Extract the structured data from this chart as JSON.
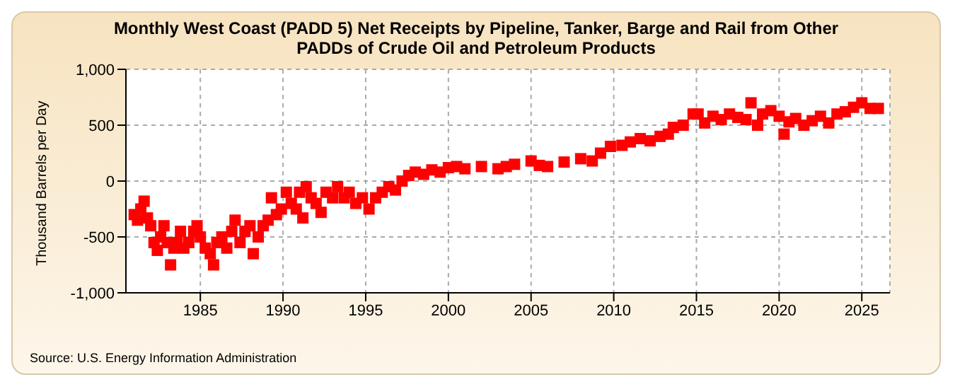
{
  "chart_data": {
    "type": "scatter",
    "title": "Monthly West Coast (PADD 5) Net Receipts by Pipeline, Tanker, Barge and Rail from Other PADDs of Crude Oil and Petroleum Products",
    "ylabel": "Thousand Barrels per Day",
    "annotations": [
      "Source: U.S. Energy Information Administration"
    ],
    "x": [
      1981.0,
      1981.2,
      1981.4,
      1981.6,
      1981.8,
      1982.0,
      1982.2,
      1982.4,
      1982.6,
      1982.8,
      1983.0,
      1983.2,
      1983.4,
      1983.6,
      1983.8,
      1984.0,
      1984.3,
      1984.6,
      1984.8,
      1985.0,
      1985.3,
      1985.6,
      1985.8,
      1986.0,
      1986.3,
      1986.6,
      1986.9,
      1987.1,
      1987.4,
      1987.7,
      1988.0,
      1988.2,
      1988.5,
      1988.8,
      1989.1,
      1989.3,
      1989.6,
      1989.9,
      1990.2,
      1990.5,
      1990.8,
      1991.0,
      1991.2,
      1991.4,
      1991.7,
      1992.0,
      1992.3,
      1992.6,
      1993.0,
      1993.3,
      1993.7,
      1994.0,
      1994.4,
      1994.8,
      1995.2,
      1995.6,
      1996.0,
      1996.4,
      1996.8,
      1997.2,
      1997.6,
      1998.0,
      1998.5,
      1999.0,
      1999.5,
      2000.0,
      2000.5,
      2001.0,
      2002.0,
      2003.0,
      2003.5,
      2004.0,
      2005.0,
      2005.5,
      2006.0,
      2007.0,
      2008.0,
      2008.7,
      2009.2,
      2009.8,
      2010.5,
      2011.0,
      2011.6,
      2012.2,
      2012.8,
      2013.3,
      2013.6,
      2014.2,
      2014.8,
      2015.1,
      2015.5,
      2016.0,
      2016.5,
      2017.0,
      2017.5,
      2018.0,
      2018.3,
      2018.7,
      2019.0,
      2019.5,
      2020.0,
      2020.3,
      2020.6,
      2021.0,
      2021.5,
      2022.0,
      2022.5,
      2023.0,
      2023.5,
      2024.0,
      2024.5,
      2025.0,
      2025.5,
      2026.0
    ],
    "series": [
      {
        "color": "#ff0000",
        "values": [
          -300,
          -350,
          -250,
          -180,
          -330,
          -400,
          -550,
          -620,
          -500,
          -400,
          -550,
          -750,
          -600,
          -550,
          -450,
          -600,
          -550,
          -450,
          -400,
          -500,
          -600,
          -650,
          -750,
          -550,
          -500,
          -600,
          -450,
          -350,
          -550,
          -450,
          -400,
          -650,
          -500,
          -400,
          -350,
          -150,
          -300,
          -250,
          -100,
          -200,
          -250,
          -100,
          -330,
          -50,
          -150,
          -200,
          -280,
          -100,
          -150,
          -50,
          -150,
          -100,
          -200,
          -150,
          -250,
          -150,
          -100,
          -50,
          -80,
          0,
          50,
          80,
          60,
          100,
          80,
          120,
          130,
          110,
          130,
          110,
          130,
          150,
          180,
          140,
          130,
          170,
          200,
          180,
          250,
          310,
          320,
          350,
          380,
          360,
          400,
          420,
          480,
          500,
          600,
          600,
          520,
          580,
          550,
          600,
          570,
          550,
          700,
          500,
          600,
          630,
          580,
          420,
          530,
          560,
          500,
          540,
          580,
          520,
          600,
          620,
          660,
          700,
          650,
          650
        ]
      }
    ],
    "marker": "square",
    "grid": true,
    "xlim": [
      1980.5,
      2026.7
    ],
    "xticks": [
      1985,
      1990,
      1995,
      2000,
      2005,
      2010,
      2015,
      2020,
      2025
    ],
    "ylim": [
      -1000,
      1000
    ],
    "yticks": [
      {
        "value": -1000,
        "label": "-1,000"
      },
      -500,
      0,
      500,
      {
        "value": 1000,
        "label": "1,000"
      }
    ]
  }
}
